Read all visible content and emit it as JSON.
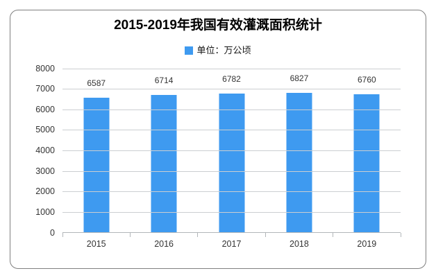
{
  "page": {
    "background_color": "#ffffff",
    "card_border_color": "#7f7f7f"
  },
  "chart_data": {
    "type": "bar",
    "title": "2015-2019年我国有效灌溉面积统计",
    "legend_label": "单位：万公顷",
    "legend_position": "top-center",
    "categories": [
      "2015",
      "2016",
      "2017",
      "2018",
      "2019"
    ],
    "values": [
      6587,
      6714,
      6782,
      6827,
      6760
    ],
    "xlabel": "",
    "ylabel": "",
    "ylim": [
      0,
      8000
    ],
    "yticks": [
      0,
      1000,
      2000,
      3000,
      4000,
      5000,
      6000,
      7000,
      8000
    ],
    "grid": true,
    "bar_color": "#3E9AF0",
    "gridline_color": "#cbced1",
    "axis_color": "#b2b6b9"
  }
}
